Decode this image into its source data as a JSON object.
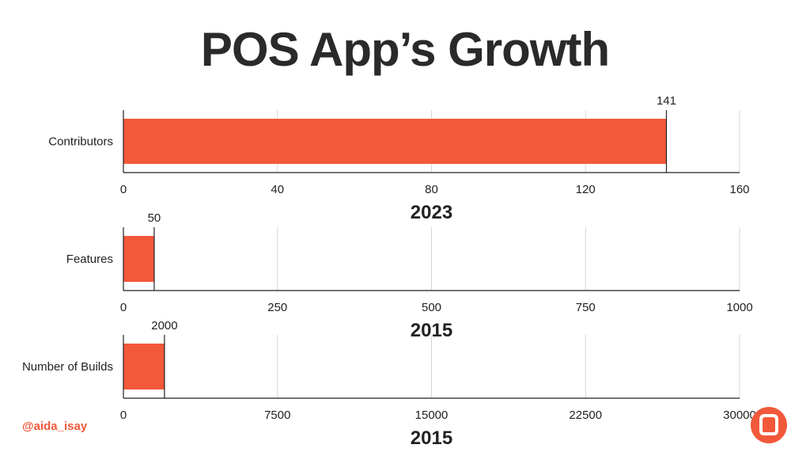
{
  "title": "POS App’s Growth",
  "handle": "@aida_isay",
  "logo_icon": "chat-bubble-icon",
  "colors": {
    "bar": "#f2583a",
    "grid": "#d6d6d6",
    "axis": "#222222"
  },
  "chart_data": [
    {
      "type": "bar",
      "orientation": "horizontal",
      "categories": [
        "Contributors"
      ],
      "values": [
        141
      ],
      "data_labels": [
        "141"
      ],
      "xlim": [
        0,
        160
      ],
      "xticks": [
        0,
        40,
        80,
        120,
        160
      ],
      "xtick_labels": [
        "0",
        "40",
        "80",
        "120",
        "160"
      ],
      "xlabel": "2023",
      "grid": true
    },
    {
      "type": "bar",
      "orientation": "horizontal",
      "categories": [
        "Features"
      ],
      "values": [
        50
      ],
      "data_labels": [
        "50"
      ],
      "xlim": [
        0,
        1000
      ],
      "xticks": [
        0,
        250,
        500,
        750,
        1000
      ],
      "xtick_labels": [
        "0",
        "250",
        "500",
        "750",
        "1000"
      ],
      "xlabel": "2015",
      "grid": true
    },
    {
      "type": "bar",
      "orientation": "horizontal",
      "categories": [
        "Number of Builds"
      ],
      "values": [
        2000
      ],
      "data_labels": [
        "2000"
      ],
      "xlim": [
        0,
        30000
      ],
      "xticks": [
        0,
        7500,
        15000,
        22500,
        30000
      ],
      "xtick_labels": [
        "0",
        "7500",
        "15000",
        "22500",
        "30000"
      ],
      "xlabel": "2015",
      "grid": true
    }
  ]
}
